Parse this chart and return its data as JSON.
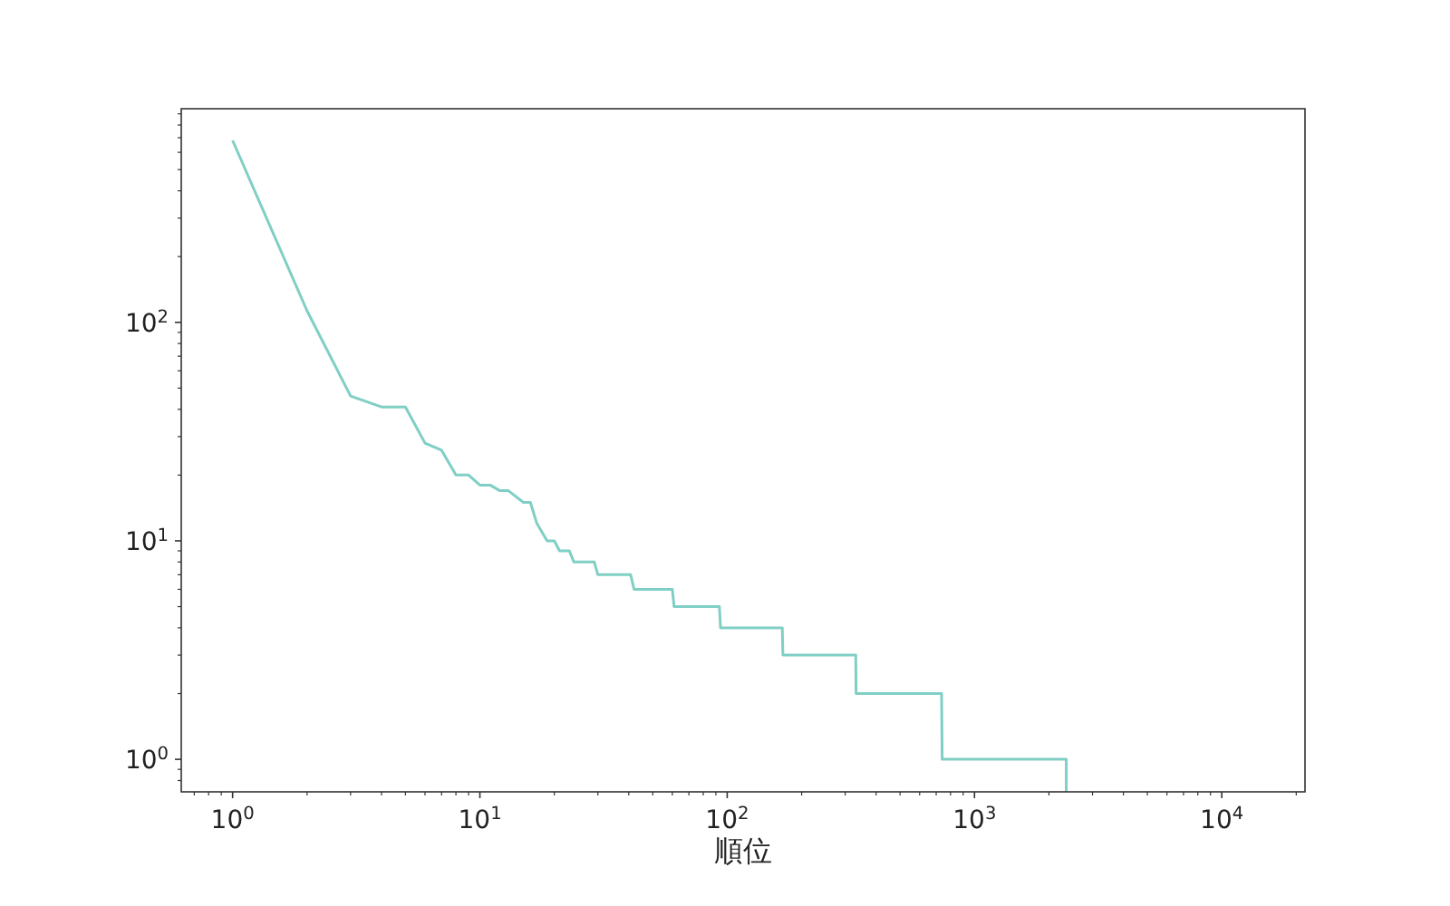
{
  "chart_data": {
    "type": "line",
    "xlabel": "順位",
    "log": "xy",
    "grid": false,
    "marker": "none",
    "line_style": "solid",
    "xlim": [
      0.62,
      21700
    ],
    "ylim": [
      0.71,
      950
    ],
    "xticks": [
      {
        "value": 1,
        "label": "10$^{0}$"
      },
      {
        "value": 10,
        "label": "10$^{1}$"
      },
      {
        "value": 100,
        "label": "10$^{2}$"
      },
      {
        "value": 1000,
        "label": "10$^{3}$"
      },
      {
        "value": 10000,
        "label": "10$^{4}$"
      }
    ],
    "yticks": [
      {
        "value": 1,
        "label": "10$^{0}$"
      },
      {
        "value": 10,
        "label": "10$^{1}$"
      },
      {
        "value": 100,
        "label": "10$^{2}$"
      }
    ],
    "series": [
      {
        "color": "#7fcfc4",
        "x": [
          1,
          2,
          3,
          4,
          5,
          6,
          7,
          8,
          9,
          10,
          11,
          12,
          13,
          15,
          16,
          17,
          18.7,
          20,
          21,
          23,
          24,
          29,
          30,
          40.7,
          42,
          60,
          61,
          93,
          94,
          167,
          168,
          331,
          332,
          736,
          740,
          2350,
          2350
        ],
        "values": [
          680,
          113,
          46,
          41,
          41,
          28,
          26,
          20,
          20,
          18,
          18,
          17,
          17,
          15,
          15,
          12,
          10,
          10,
          9,
          9,
          8,
          8,
          7,
          7,
          6,
          6,
          5,
          5,
          4,
          4,
          3,
          3,
          2,
          2,
          1,
          1,
          0.71
        ]
      }
    ]
  }
}
